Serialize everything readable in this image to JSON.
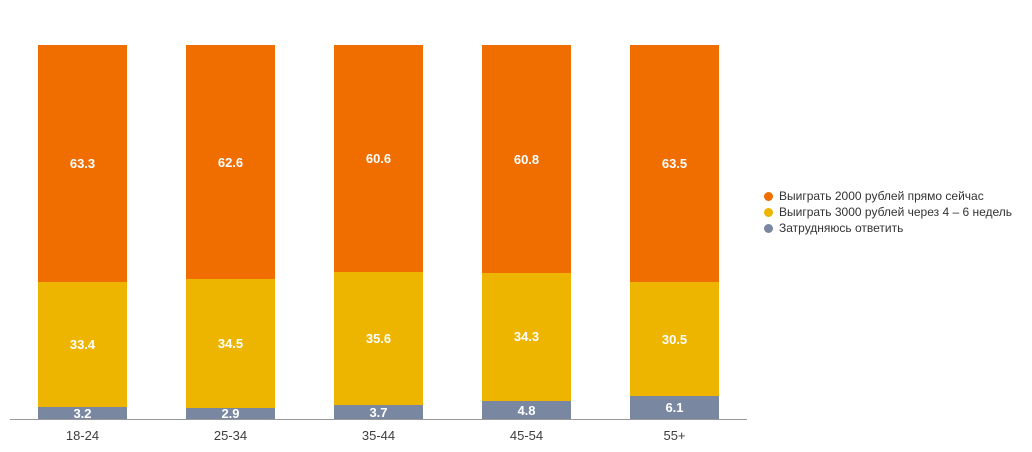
{
  "chart_data": {
    "type": "bar",
    "stacked": true,
    "orientation": "vertical",
    "categories": [
      "18-24",
      "25-34",
      "35-44",
      "45-54",
      "55+"
    ],
    "series": [
      {
        "name": "Выиграть 2000 рублей прямо сейчас",
        "color": "#f06d00",
        "values": [
          63.3,
          62.6,
          60.6,
          60.8,
          63.5
        ]
      },
      {
        "name": "Выиграть 3000 рублей через 4 – 6 недель",
        "color": "#edb500",
        "values": [
          33.4,
          34.5,
          35.6,
          34.3,
          30.5
        ]
      },
      {
        "name": "Затрудняюсь ответить",
        "color": "#7a87a1",
        "values": [
          3.2,
          2.9,
          3.7,
          4.8,
          6.1
        ]
      }
    ],
    "title": "",
    "xlabel": "",
    "ylabel": "",
    "ylim": [
      0,
      100
    ],
    "grid": false,
    "legend_position": "right",
    "value_labels": "inside-center",
    "value_label_color": "#ffffff",
    "axis_line_color": "#999999",
    "category_label_color": "#3d3d3d",
    "background_color": "#ffffff"
  }
}
